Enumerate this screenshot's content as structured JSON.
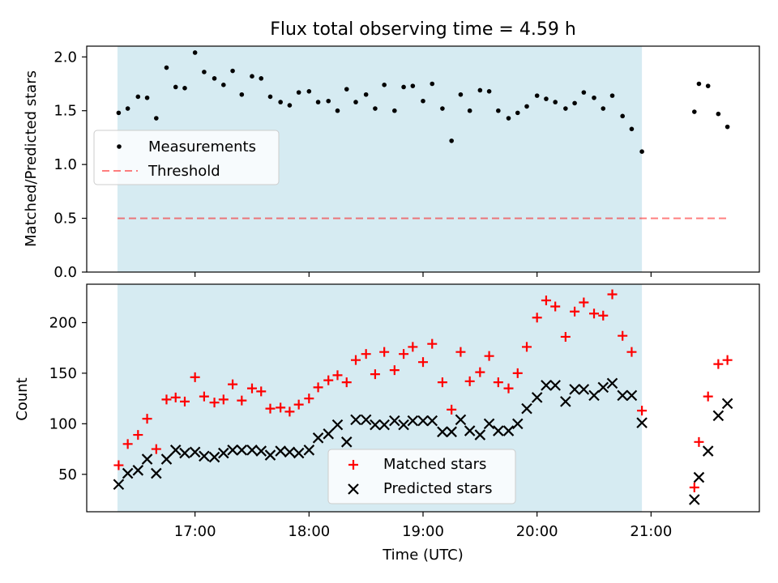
{
  "figure": {
    "title": "Flux total observing time = 4.59 h",
    "xlabel": "Time (UTC)",
    "x_tick_labels": [
      "17:00",
      "18:00",
      "19:00",
      "20:00",
      "21:00"
    ]
  },
  "colors": {
    "shade": "#add8e6",
    "threshold": "#ff0000",
    "measurement": "#000000",
    "matched": "#ff0000",
    "predicted": "#000000"
  },
  "chart_data": [
    {
      "type": "scatter",
      "panel": "top",
      "ylabel": "Matched/Predicted stars",
      "xlim_hours": [
        16.05,
        21.95
      ],
      "ylim": [
        0.0,
        2.1
      ],
      "yticks": [
        0.0,
        0.5,
        1.0,
        1.5,
        2.0
      ],
      "ytick_labels": [
        "0.0",
        "0.5",
        "1.0",
        "1.5",
        "2.0"
      ],
      "shaded_span_hours": [
        16.32,
        20.92
      ],
      "threshold": {
        "value": 0.5,
        "x_range_hours": [
          16.32,
          21.67
        ]
      },
      "legend": {
        "placement": "middle-left",
        "entries": [
          "Measurements",
          "Threshold"
        ]
      },
      "x_hours": [
        16.33,
        16.41,
        16.5,
        16.58,
        16.66,
        16.75,
        16.83,
        16.91,
        17.0,
        17.08,
        17.17,
        17.25,
        17.33,
        17.41,
        17.5,
        17.58,
        17.66,
        17.75,
        17.83,
        17.91,
        18.0,
        18.08,
        18.17,
        18.25,
        18.33,
        18.41,
        18.5,
        18.58,
        18.66,
        18.75,
        18.83,
        18.91,
        19.0,
        19.08,
        19.17,
        19.25,
        19.33,
        19.41,
        19.5,
        19.58,
        19.66,
        19.75,
        19.83,
        19.91,
        20.0,
        20.08,
        20.16,
        20.25,
        20.33,
        20.41,
        20.5,
        20.58,
        20.66,
        20.75,
        20.83,
        20.92,
        21.38,
        21.42,
        21.5,
        21.59,
        21.67
      ],
      "values": [
        1.48,
        1.52,
        1.63,
        1.62,
        1.43,
        1.9,
        1.72,
        1.71,
        2.04,
        1.86,
        1.8,
        1.74,
        1.87,
        1.65,
        1.82,
        1.8,
        1.63,
        1.58,
        1.55,
        1.67,
        1.68,
        1.58,
        1.59,
        1.5,
        1.7,
        1.58,
        1.65,
        1.52,
        1.74,
        1.5,
        1.72,
        1.73,
        1.59,
        1.75,
        1.52,
        1.22,
        1.65,
        1.5,
        1.69,
        1.68,
        1.5,
        1.43,
        1.48,
        1.54,
        1.64,
        1.61,
        1.58,
        1.52,
        1.57,
        1.67,
        1.62,
        1.52,
        1.64,
        1.45,
        1.33,
        1.12,
        1.49,
        1.75,
        1.73,
        1.47,
        1.35
      ]
    },
    {
      "type": "scatter",
      "panel": "bottom",
      "ylabel": "Count",
      "xlim_hours": [
        16.05,
        21.95
      ],
      "ylim": [
        13,
        238
      ],
      "yticks": [
        50,
        100,
        150,
        200
      ],
      "ytick_labels": [
        "50",
        "100",
        "150",
        "200"
      ],
      "shaded_span_hours": [
        16.32,
        20.92
      ],
      "legend": {
        "placement": "lower-center",
        "entries": [
          "Matched stars",
          "Predicted stars"
        ]
      },
      "x_hours": [
        16.33,
        16.41,
        16.5,
        16.58,
        16.66,
        16.75,
        16.83,
        16.91,
        17.0,
        17.08,
        17.17,
        17.25,
        17.33,
        17.41,
        17.5,
        17.58,
        17.66,
        17.75,
        17.83,
        17.91,
        18.0,
        18.08,
        18.17,
        18.25,
        18.33,
        18.41,
        18.5,
        18.58,
        18.66,
        18.75,
        18.83,
        18.91,
        19.0,
        19.08,
        19.17,
        19.25,
        19.33,
        19.41,
        19.5,
        19.58,
        19.66,
        19.75,
        19.83,
        19.91,
        20.0,
        20.08,
        20.16,
        20.25,
        20.33,
        20.41,
        20.5,
        20.58,
        20.66,
        20.75,
        20.83,
        20.92,
        21.38,
        21.42,
        21.5,
        21.59,
        21.67
      ],
      "series": [
        {
          "name": "Matched stars",
          "marker": "plus",
          "values": [
            59,
            80,
            89,
            105,
            75,
            124,
            126,
            122,
            146,
            127,
            121,
            124,
            139,
            123,
            135,
            132,
            115,
            116,
            112,
            119,
            125,
            136,
            143,
            148,
            141,
            163,
            169,
            149,
            171,
            153,
            169,
            176,
            161,
            179,
            141,
            114,
            171,
            142,
            151,
            167,
            141,
            135,
            150,
            176,
            205,
            222,
            216,
            186,
            211,
            220,
            209,
            207,
            228,
            187,
            171,
            113,
            37,
            82,
            127,
            159,
            163
          ]
        },
        {
          "name": "Predicted stars",
          "marker": "x",
          "values": [
            40,
            51,
            54,
            65,
            51,
            65,
            74,
            71,
            72,
            68,
            67,
            71,
            74,
            74,
            74,
            73,
            69,
            73,
            72,
            71,
            74,
            86,
            90,
            99,
            82,
            104,
            104,
            99,
            99,
            103,
            99,
            103,
            103,
            103,
            92,
            92,
            104,
            93,
            89,
            100,
            93,
            93,
            100,
            115,
            126,
            138,
            138,
            122,
            134,
            134,
            128,
            136,
            140,
            128,
            128,
            101,
            25,
            47,
            73,
            108,
            120
          ]
        }
      ]
    }
  ]
}
